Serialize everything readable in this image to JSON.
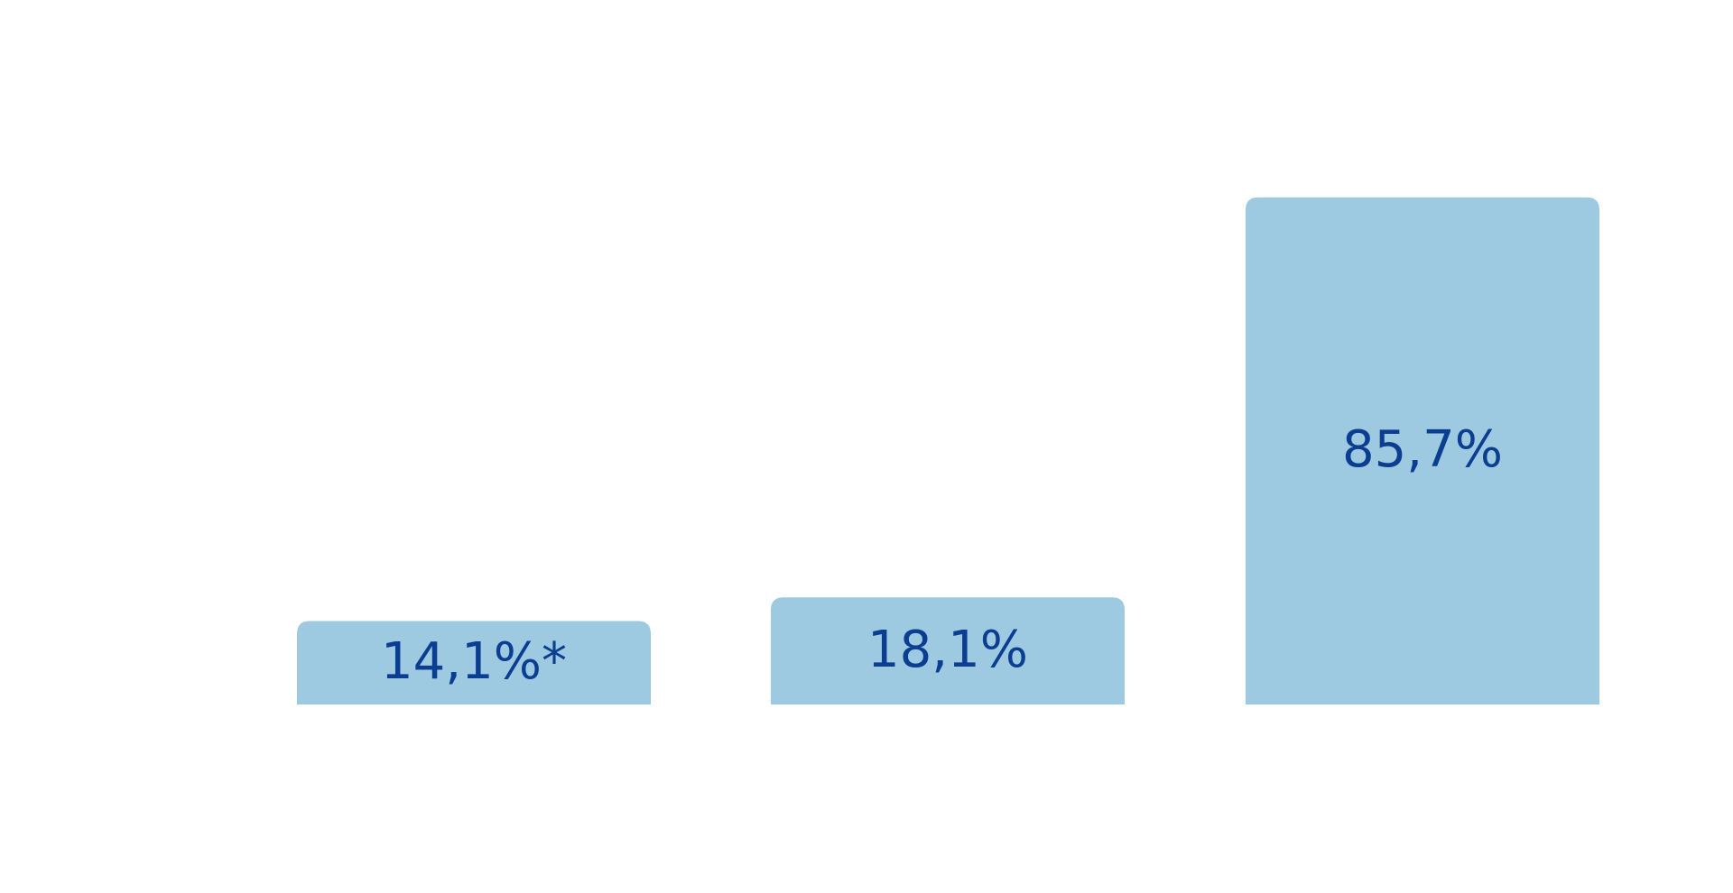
{
  "colors": {
    "background": "#ffffff",
    "bar": "#9ecae1",
    "label": "#0b3d91"
  },
  "chart_data": {
    "type": "bar",
    "categories": [],
    "values": [
      14.1,
      18.1,
      85.7
    ],
    "labels": [
      "14,1%*",
      "18,1%",
      "85,7%"
    ],
    "ylim": [
      0,
      100
    ],
    "grid": false,
    "legend": "none"
  }
}
